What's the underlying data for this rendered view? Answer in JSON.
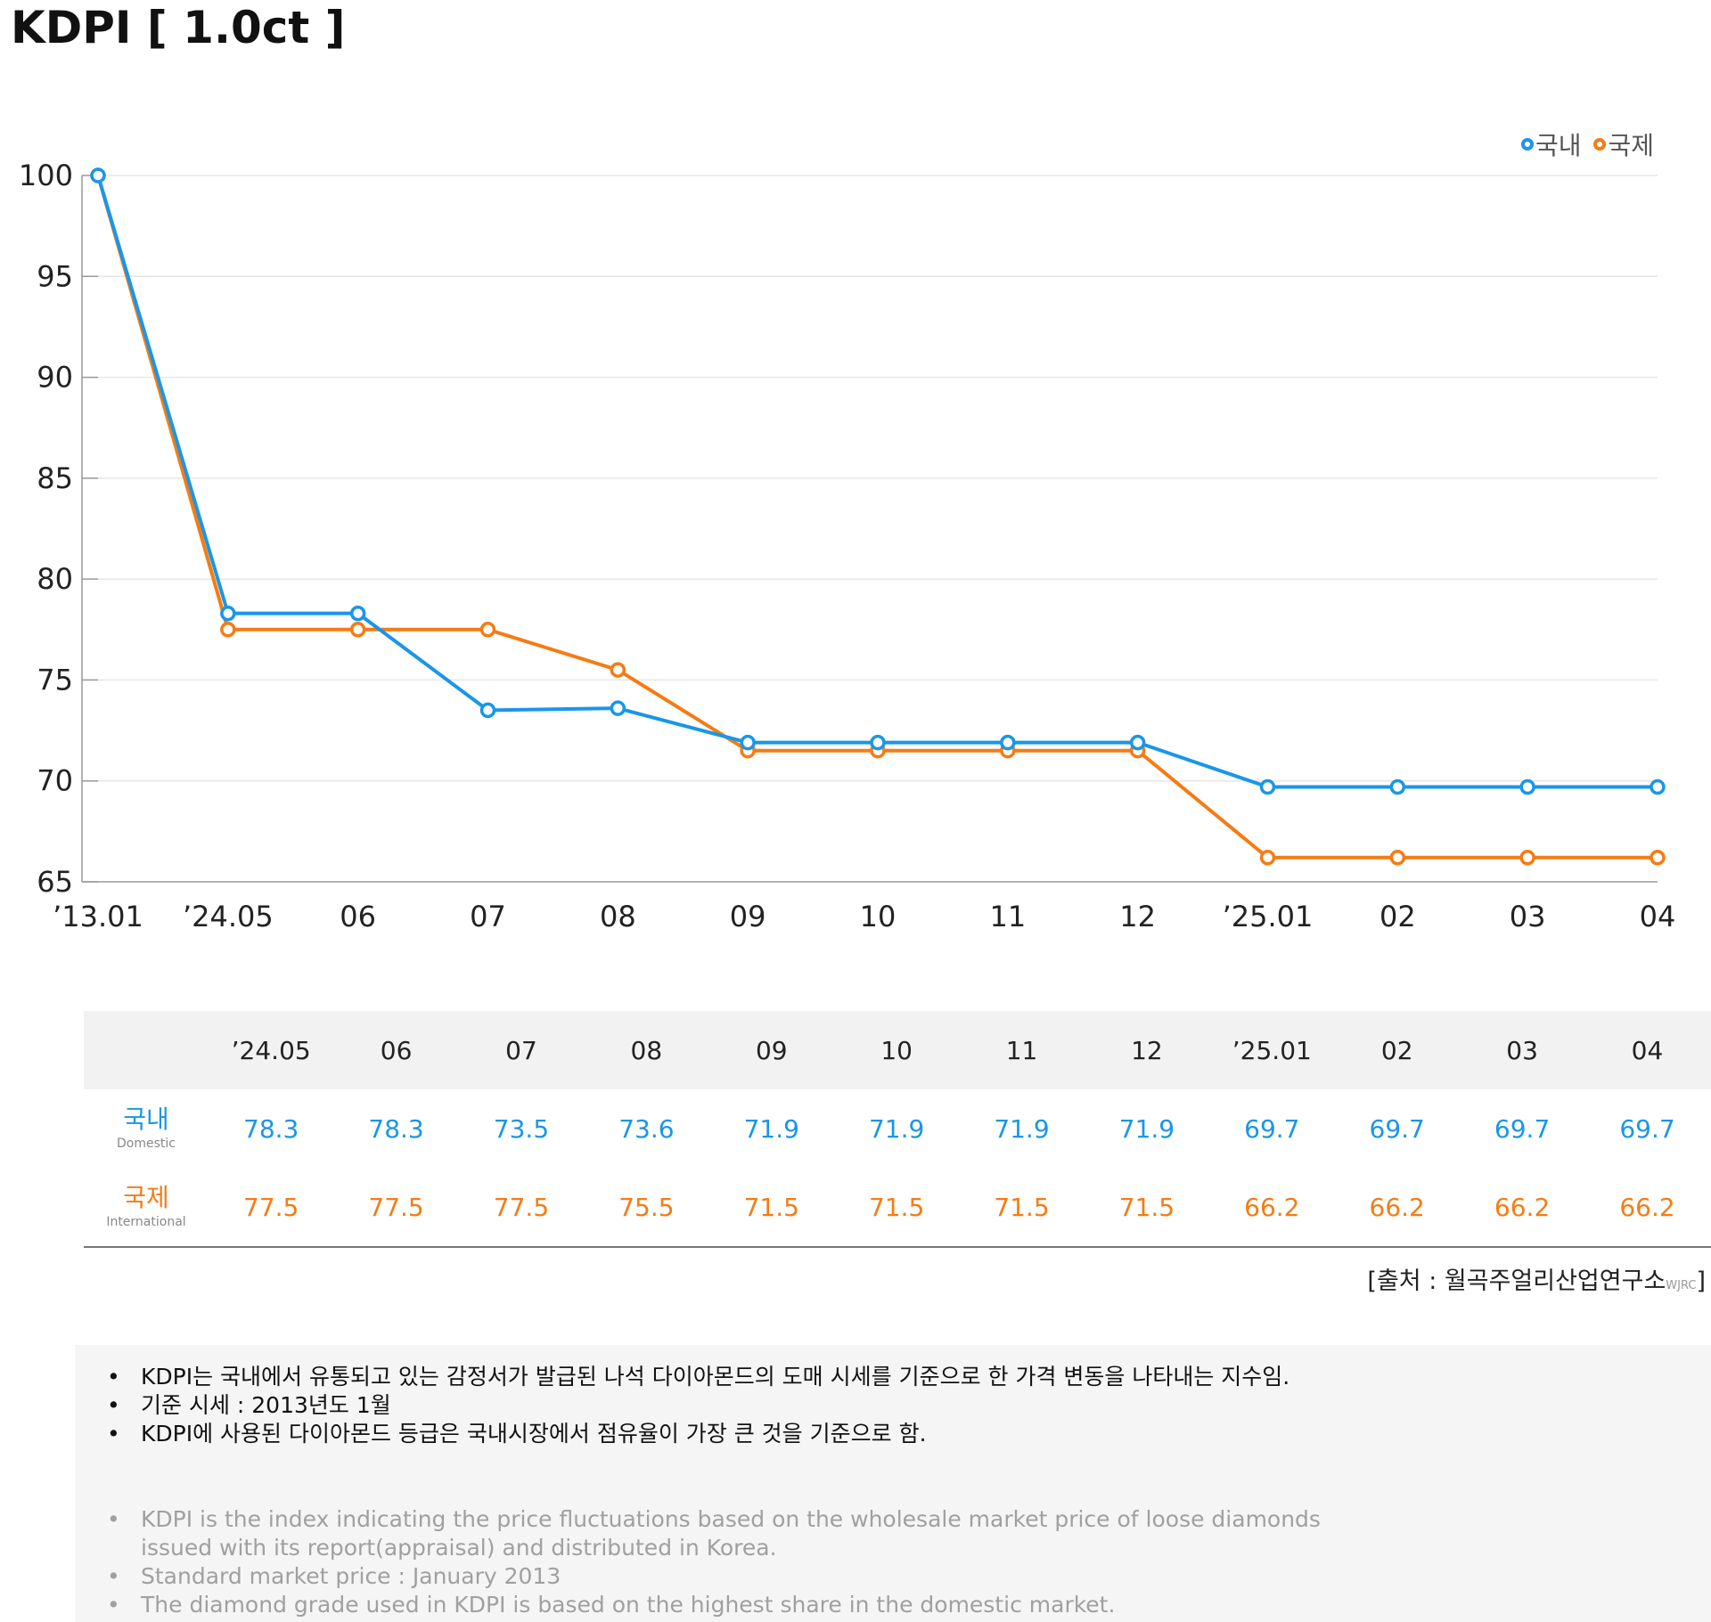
{
  "title": "KDPI [ 1.0ct ]",
  "legend": {
    "domestic": "국내",
    "international": "국제"
  },
  "colors": {
    "domestic": "#1a96e8",
    "international": "#f47c14",
    "grid": "#e6e6e6",
    "axis": "#999999"
  },
  "chart_data": {
    "type": "line",
    "categories": [
      "’13.01",
      "’24.05",
      "06",
      "07",
      "08",
      "09",
      "10",
      "11",
      "12",
      "’25.01",
      "02",
      "03",
      "04"
    ],
    "series": [
      {
        "name": "국내",
        "values": [
          100,
          78.3,
          78.3,
          73.5,
          73.6,
          71.9,
          71.9,
          71.9,
          71.9,
          69.7,
          69.7,
          69.7,
          69.7
        ]
      },
      {
        "name": "국제",
        "values": [
          100,
          77.5,
          77.5,
          77.5,
          75.5,
          71.5,
          71.5,
          71.5,
          71.5,
          66.2,
          66.2,
          66.2,
          66.2
        ]
      }
    ],
    "ylim": [
      65,
      100
    ],
    "yticks": [
      65,
      70,
      75,
      80,
      85,
      90,
      95,
      100
    ],
    "grid": true,
    "legend_position": "top-right",
    "markers": "hollow-circle"
  },
  "table": {
    "headers": [
      "’24.05",
      "06",
      "07",
      "08",
      "09",
      "10",
      "11",
      "12",
      "’25.01",
      "02",
      "03",
      "04"
    ],
    "rows": [
      {
        "label": "국내",
        "sublabel": "Domestic",
        "values": [
          "78.3",
          "78.3",
          "73.5",
          "73.6",
          "71.9",
          "71.9",
          "71.9",
          "71.9",
          "69.7",
          "69.7",
          "69.7",
          "69.7"
        ]
      },
      {
        "label": "국제",
        "sublabel": "International",
        "values": [
          "77.5",
          "77.5",
          "77.5",
          "75.5",
          "71.5",
          "71.5",
          "71.5",
          "71.5",
          "66.2",
          "66.2",
          "66.2",
          "66.2"
        ]
      }
    ]
  },
  "source": {
    "text": "[출처 : 월곡주얼리산업연구소",
    "abbr": "WJRC",
    "close": "]"
  },
  "notes_ko": [
    "KDPI는 국내에서 유통되고 있는 감정서가 발급된 나석 다이아몬드의 도매 시세를 기준으로 한 가격 변동을 나타내는 지수임.",
    "기준 시세 : 2013년도 1월",
    "KDPI에 사용된 다이아몬드 등급은 국내시장에서 점유율이 가장 큰 것을 기준으로 함."
  ],
  "notes_en": [
    "KDPI is the index indicating the price fluctuations based on the wholesale market price of loose diamonds issued with its report(appraisal) and distributed in Korea.",
    "Standard market price : January 2013",
    "The diamond grade used in KDPI is based on the highest share in the domestic market."
  ]
}
